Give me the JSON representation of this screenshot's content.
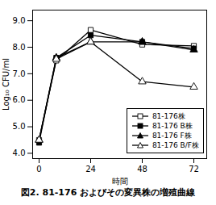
{
  "chart_data": {
    "type": "line",
    "xlabel": "時間",
    "ylabel": "Log₁₀ CFU/ml",
    "caption": "図2. 81-176 およびその変異株の増殖曲線",
    "x": [
      0,
      8,
      24,
      48,
      72
    ],
    "series": [
      {
        "name": "81-176株",
        "color": "black",
        "marker": "square-open",
        "values": [
          4.5,
          7.5,
          8.65,
          8.1,
          8.05
        ]
      },
      {
        "name": "81-176 B株",
        "color": "black",
        "marker": "square",
        "values": [
          4.4,
          7.6,
          8.45,
          8.2,
          7.95
        ]
      },
      {
        "name": "81-176 F株",
        "color": "black",
        "marker": "triangle",
        "values": [
          4.5,
          7.6,
          8.2,
          8.2,
          7.9
        ]
      },
      {
        "name": "81-176 B/F株",
        "color": "black",
        "marker": "triangle-open",
        "values": [
          4.5,
          7.55,
          8.2,
          6.7,
          6.5
        ]
      }
    ],
    "xlim": [
      -3,
      78
    ],
    "ylim": [
      3.8,
      9.4
    ],
    "xticks": [
      0,
      24,
      48,
      72
    ],
    "yticks": [
      4,
      5,
      6,
      7,
      8,
      9
    ],
    "grid": false,
    "legend": "lower right"
  }
}
